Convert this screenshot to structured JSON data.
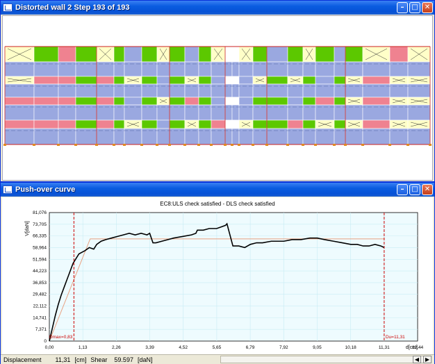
{
  "wall_window": {
    "title": "Distorted wall 2 Step 193 of 193",
    "colors": {
      "yellow": "#ffffc8",
      "green": "#5cc800",
      "pink": "#ef8290",
      "blue": "#9aa8e0",
      "frame_red": "#cc2222",
      "node_orange": "#e08a20"
    }
  },
  "curve_window": {
    "title": "Push-over curve",
    "colors": {
      "curve": "#000000",
      "bilinear": "#e8a080",
      "marker": "#cc0000",
      "grid": "#c8ecf4",
      "plot_bg": "#eefbfe"
    }
  },
  "chart_data": {
    "type": "line",
    "title": "EC8:ULS check satisfied  -  DLS check satisfied",
    "ylabel": "V[daN]",
    "xlabel": "d[cm]",
    "xlim": [
      0,
      12.44
    ],
    "ylim": [
      0,
      81.076
    ],
    "xticks": [
      "0,00",
      "1,13",
      "2,26",
      "3,39",
      "4,52",
      "5,65",
      "6,79",
      "7,92",
      "9,05",
      "10,18",
      "11,31",
      "12,44"
    ],
    "yticks": [
      "0",
      "7,371",
      "14,741",
      "22,112",
      "29,482",
      "36,853",
      "44,223",
      "51,594",
      "58,964",
      "66,335",
      "73,705",
      "81,076"
    ],
    "series": [
      {
        "x": [
          0,
          0.1,
          0.2,
          0.3,
          0.4,
          0.5,
          0.6,
          0.7,
          0.8,
          0.9,
          1.0,
          1.1,
          1.2,
          1.35,
          1.5,
          1.6,
          1.75,
          1.9,
          2.1,
          2.3,
          2.5,
          2.7,
          2.9,
          3.1,
          3.3,
          3.39,
          3.5,
          3.6,
          3.8,
          4.0,
          4.2,
          4.5,
          4.8,
          4.95,
          5.0,
          5.2,
          5.4,
          5.5,
          5.65,
          5.8,
          5.95,
          6.0,
          6.2,
          6.4,
          6.6,
          6.79,
          7.0,
          7.2,
          7.5,
          7.92,
          8.2,
          8.5,
          8.8,
          9.05,
          9.3,
          9.6,
          9.9,
          10.18,
          10.4,
          10.6,
          10.8,
          11.0,
          11.2,
          11.31
        ],
        "y": [
          0,
          8,
          16,
          23,
          29,
          34,
          39,
          44,
          49,
          52,
          55,
          56,
          57,
          59,
          58,
          61,
          63,
          64,
          65,
          66,
          67,
          68,
          67,
          68,
          67,
          68,
          62,
          62,
          63,
          64,
          65,
          66,
          67,
          68,
          70,
          70,
          71,
          71,
          71,
          72,
          73,
          74,
          60,
          60,
          59,
          61,
          62,
          62,
          63,
          63,
          64,
          64,
          65,
          65,
          64,
          63,
          62,
          61,
          61,
          60,
          60,
          61,
          60,
          59
        ]
      },
      {
        "x": [
          0,
          1.38,
          11.31
        ],
        "y": [
          0,
          64.5,
          64.5
        ]
      }
    ],
    "markers": [
      {
        "x": 0.83,
        "label": "Dmax=0,83"
      },
      {
        "x": 11.31,
        "label": "Du=11,31"
      }
    ],
    "grid": true
  },
  "status_bar": {
    "displacement_label": "Displacement",
    "displacement_value": "11,31",
    "displacement_unit": "[cm]",
    "shear_label": "Shear",
    "shear_value": "59.597",
    "shear_unit": "[daN]"
  }
}
